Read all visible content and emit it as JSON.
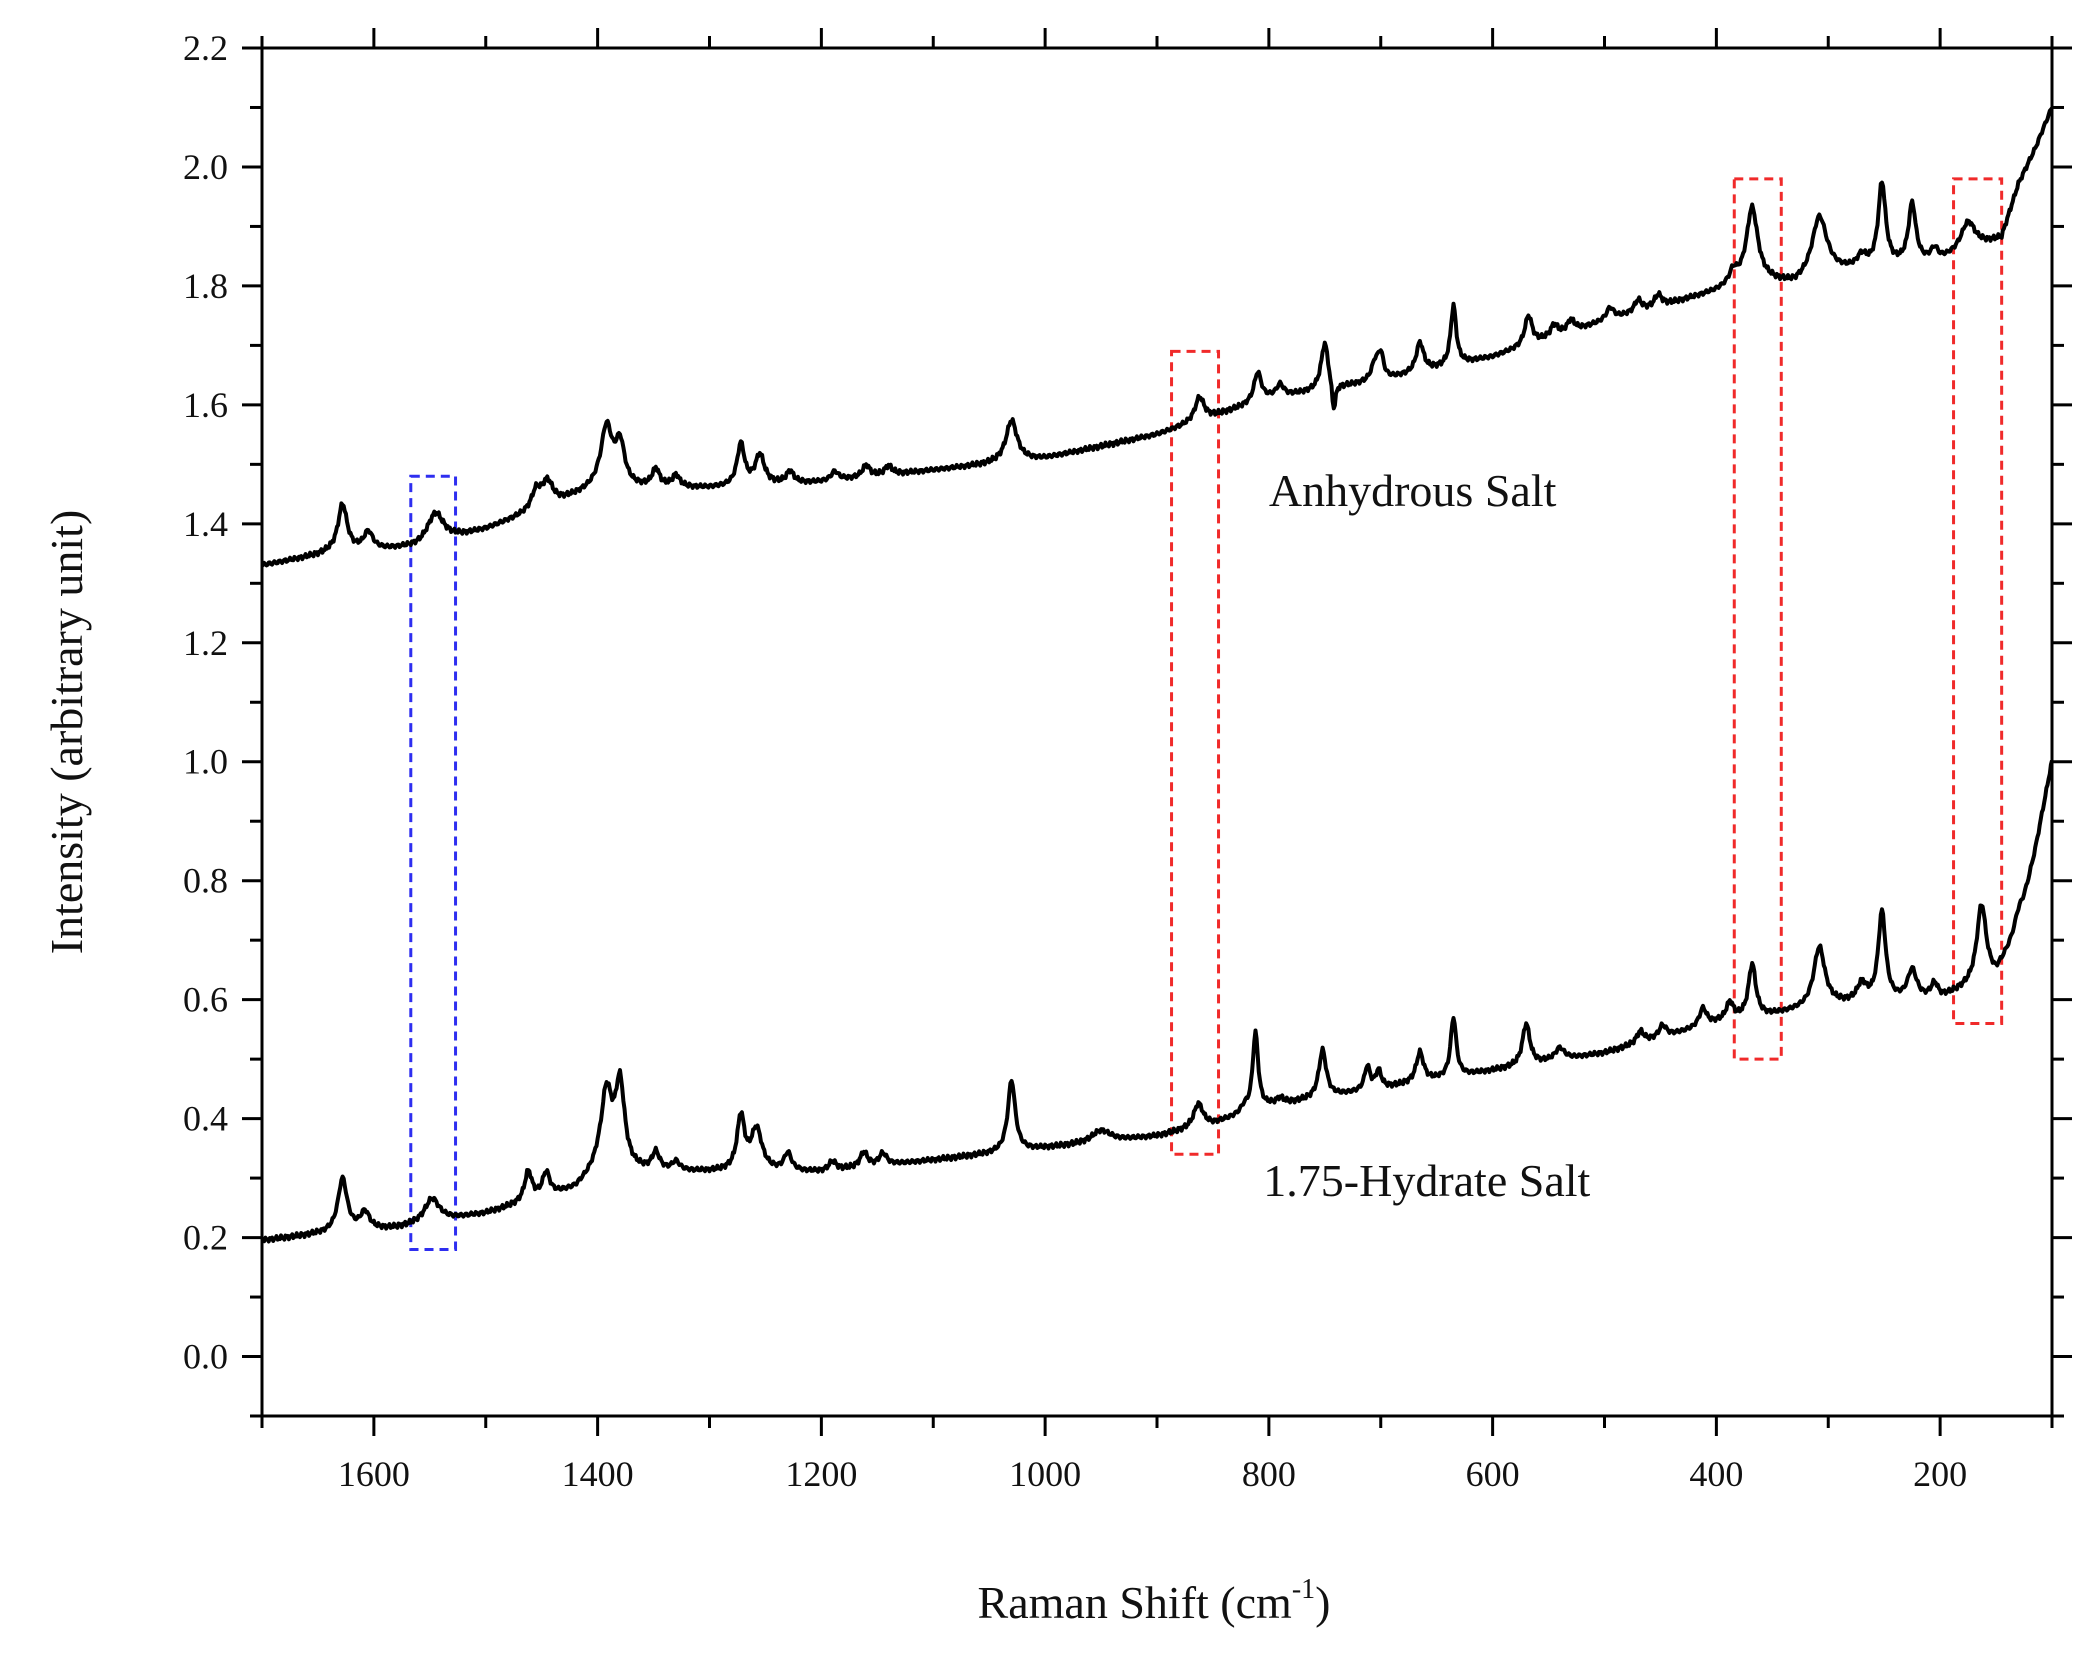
{
  "chart_data": {
    "type": "line",
    "title": "",
    "xlabel": "Raman Shift (cm",
    "xlabel_sup": "-1",
    "xlabel_close": ")",
    "ylabel": "Intensity (arbitrary unit)",
    "xlim": [
      1700,
      100
    ],
    "ylim": [
      -0.1,
      2.2
    ],
    "x_reversed": true,
    "x_ticks": [
      1600,
      1400,
      1200,
      1000,
      800,
      600,
      400,
      200
    ],
    "x_tick_labels": [
      "1600",
      "1400",
      "1200",
      "1000",
      "800",
      "600",
      "400",
      "200"
    ],
    "y_ticks": [
      0.0,
      0.2,
      0.4,
      0.6,
      0.8,
      1.0,
      1.2,
      1.4,
      1.6,
      1.8,
      2.0,
      2.2
    ],
    "y_tick_labels": [
      "0.0",
      "0.2",
      "0.4",
      "0.6",
      "0.8",
      "1.0",
      "1.2",
      "1.4",
      "1.6",
      "1.8",
      "2.0",
      "2.2"
    ],
    "grid": false,
    "series": [
      {
        "name": "Anhydrous Salt",
        "color": "#000000",
        "baseline": [
          [
            1700,
            1.33
          ],
          [
            1640,
            1.35
          ],
          [
            1560,
            1.36
          ],
          [
            1500,
            1.39
          ],
          [
            1400,
            1.46
          ],
          [
            1300,
            1.46
          ],
          [
            1200,
            1.47
          ],
          [
            1100,
            1.49
          ],
          [
            1000,
            1.51
          ],
          [
            900,
            1.55
          ],
          [
            850,
            1.58
          ],
          [
            800,
            1.61
          ],
          [
            700,
            1.64
          ],
          [
            600,
            1.68
          ],
          [
            500,
            1.74
          ],
          [
            400,
            1.79
          ],
          [
            370,
            1.81
          ],
          [
            330,
            1.8
          ],
          [
            300,
            1.82
          ],
          [
            200,
            1.84
          ],
          [
            170,
            1.86
          ],
          [
            145,
            1.88
          ],
          [
            130,
            1.97
          ],
          [
            115,
            2.03
          ],
          [
            100,
            2.1
          ]
        ],
        "peaks": [
          [
            1628,
            0.08,
            5
          ],
          [
            1605,
            0.03,
            5
          ],
          [
            1545,
            0.05,
            9
          ],
          [
            1455,
            0.03,
            5
          ],
          [
            1445,
            0.04,
            6
          ],
          [
            1392,
            0.1,
            6
          ],
          [
            1380,
            0.07,
            5
          ],
          [
            1348,
            0.03,
            4
          ],
          [
            1330,
            0.02,
            4
          ],
          [
            1272,
            0.07,
            4
          ],
          [
            1255,
            0.05,
            5
          ],
          [
            1228,
            0.02,
            4
          ],
          [
            1188,
            0.015,
            4
          ],
          [
            1160,
            0.02,
            4
          ],
          [
            1140,
            0.015,
            4
          ],
          [
            1030,
            0.07,
            6
          ],
          [
            862,
            0.04,
            5
          ],
          [
            810,
            0.05,
            4
          ],
          [
            790,
            0.02,
            4
          ],
          [
            750,
            0.08,
            4
          ],
          [
            742,
            -0.05,
            2
          ],
          [
            705,
            0.03,
            4
          ],
          [
            700,
            0.04,
            3
          ],
          [
            665,
            0.05,
            4
          ],
          [
            635,
            0.1,
            3
          ],
          [
            568,
            0.05,
            4
          ],
          [
            545,
            0.02,
            4
          ],
          [
            530,
            0.02,
            4
          ],
          [
            495,
            0.02,
            4
          ],
          [
            470,
            0.02,
            4
          ],
          [
            452,
            0.02,
            4
          ],
          [
            385,
            0.02,
            4
          ],
          [
            368,
            0.12,
            6
          ],
          [
            308,
            0.1,
            8
          ],
          [
            270,
            0.02,
            5
          ],
          [
            252,
            0.14,
            4
          ],
          [
            225,
            0.1,
            4
          ],
          [
            205,
            0.02,
            4
          ],
          [
            175,
            0.05,
            8
          ]
        ],
        "label_text": "Anhydrous Salt",
        "label_at": [
          800,
          1.43
        ]
      },
      {
        "name": "1.75-Hydrate Salt",
        "color": "#000000",
        "baseline": [
          [
            1700,
            0.195
          ],
          [
            1650,
            0.205
          ],
          [
            1580,
            0.215
          ],
          [
            1500,
            0.24
          ],
          [
            1420,
            0.28
          ],
          [
            1400,
            0.31
          ],
          [
            1300,
            0.31
          ],
          [
            1200,
            0.31
          ],
          [
            1100,
            0.33
          ],
          [
            1000,
            0.35
          ],
          [
            900,
            0.37
          ],
          [
            850,
            0.39
          ],
          [
            800,
            0.42
          ],
          [
            700,
            0.45
          ],
          [
            600,
            0.48
          ],
          [
            500,
            0.51
          ],
          [
            400,
            0.56
          ],
          [
            360,
            0.57
          ],
          [
            330,
            0.58
          ],
          [
            300,
            0.59
          ],
          [
            200,
            0.6
          ],
          [
            175,
            0.62
          ],
          [
            150,
            0.64
          ],
          [
            130,
            0.72
          ],
          [
            115,
            0.85
          ],
          [
            100,
            1.0
          ]
        ],
        "peaks": [
          [
            1628,
            0.09,
            5
          ],
          [
            1608,
            0.03,
            5
          ],
          [
            1548,
            0.04,
            8
          ],
          [
            1462,
            0.05,
            4
          ],
          [
            1446,
            0.04,
            4
          ],
          [
            1392,
            0.13,
            6
          ],
          [
            1380,
            0.14,
            5
          ],
          [
            1348,
            0.03,
            4
          ],
          [
            1330,
            0.015,
            4
          ],
          [
            1272,
            0.09,
            4
          ],
          [
            1258,
            0.07,
            6
          ],
          [
            1230,
            0.03,
            4
          ],
          [
            1190,
            0.015,
            4
          ],
          [
            1162,
            0.025,
            4
          ],
          [
            1145,
            0.02,
            4
          ],
          [
            1030,
            0.12,
            4
          ],
          [
            950,
            0.02,
            10
          ],
          [
            863,
            0.04,
            5
          ],
          [
            822,
            0.01,
            4
          ],
          [
            812,
            0.13,
            3
          ],
          [
            790,
            0.01,
            4
          ],
          [
            752,
            0.08,
            4
          ],
          [
            712,
            0.04,
            3
          ],
          [
            702,
            0.03,
            3
          ],
          [
            665,
            0.05,
            4
          ],
          [
            635,
            0.1,
            3
          ],
          [
            570,
            0.07,
            4
          ],
          [
            540,
            0.02,
            5
          ],
          [
            468,
            0.02,
            4
          ],
          [
            448,
            0.02,
            4
          ],
          [
            412,
            0.03,
            4
          ],
          [
            388,
            0.03,
            4
          ],
          [
            368,
            0.09,
            4
          ],
          [
            308,
            0.1,
            6
          ],
          [
            270,
            0.03,
            5
          ],
          [
            252,
            0.15,
            4
          ],
          [
            225,
            0.05,
            5
          ],
          [
            205,
            0.025,
            4
          ],
          [
            163,
            0.13,
            5
          ],
          [
            130,
            0.03,
            4
          ]
        ],
        "label_text": "1.75-Hydrate Salt",
        "label_at": [
          805,
          0.27
        ]
      }
    ],
    "annotations": [
      {
        "shape": "dashed-rectangle",
        "color": "#2e2ef0",
        "x_range": [
          1567,
          1527
        ],
        "y_range": [
          0.18,
          1.48
        ]
      },
      {
        "shape": "dashed-rectangle",
        "color": "#f02a2a",
        "x_range": [
          887,
          845
        ],
        "y_range": [
          0.34,
          1.69
        ]
      },
      {
        "shape": "dashed-rectangle",
        "color": "#f02a2a",
        "x_range": [
          384,
          342
        ],
        "y_range": [
          0.5,
          1.98
        ]
      },
      {
        "shape": "dashed-rectangle",
        "color": "#f02a2a",
        "x_range": [
          188,
          145
        ],
        "y_range": [
          0.56,
          1.98
        ]
      }
    ]
  }
}
